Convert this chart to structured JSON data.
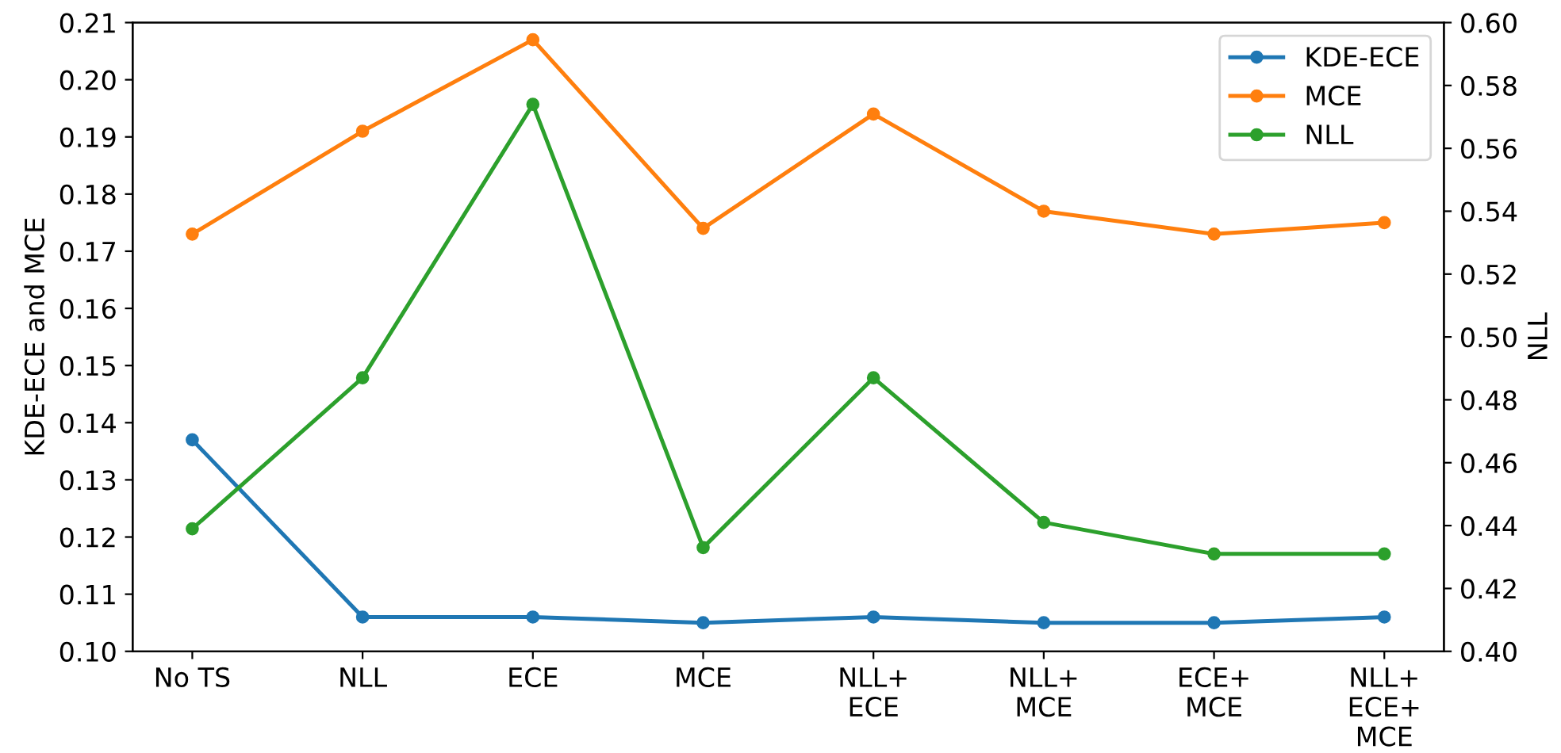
{
  "chart_data": {
    "type": "line",
    "categories": [
      "No TS",
      "NLL",
      "ECE",
      "MCE",
      "NLL+\nECE",
      "NLL+\nMCE",
      "ECE+\nMCE",
      "NLL+\nECE+\nMCE"
    ],
    "ylabel": "KDE-ECE and MCE",
    "y2label": "NLL",
    "ylim": [
      0.1,
      0.21
    ],
    "yticks": [
      {
        "value": 0.1,
        "label": "0.10"
      },
      {
        "value": 0.11,
        "label": "0.11"
      },
      {
        "value": 0.12,
        "label": "0.12"
      },
      {
        "value": 0.13,
        "label": "0.13"
      },
      {
        "value": 0.14,
        "label": "0.14"
      },
      {
        "value": 0.15,
        "label": "0.15"
      },
      {
        "value": 0.16,
        "label": "0.16"
      },
      {
        "value": 0.17,
        "label": "0.17"
      },
      {
        "value": 0.18,
        "label": "0.18"
      },
      {
        "value": 0.19,
        "label": "0.19"
      },
      {
        "value": 0.2,
        "label": "0.20"
      },
      {
        "value": 0.21,
        "label": "0.21"
      }
    ],
    "y2lim": [
      0.4,
      0.6
    ],
    "y2ticks": [
      {
        "value": 0.4,
        "label": "0.40"
      },
      {
        "value": 0.42,
        "label": "0.42"
      },
      {
        "value": 0.44,
        "label": "0.44"
      },
      {
        "value": 0.46,
        "label": "0.46"
      },
      {
        "value": 0.48,
        "label": "0.48"
      },
      {
        "value": 0.5,
        "label": "0.50"
      },
      {
        "value": 0.52,
        "label": "0.52"
      },
      {
        "value": 0.54,
        "label": "0.54"
      },
      {
        "value": 0.56,
        "label": "0.56"
      },
      {
        "value": 0.58,
        "label": "0.58"
      },
      {
        "value": 0.6,
        "label": "0.60"
      }
    ],
    "marker": "circle",
    "line_style": "solid",
    "grid": false,
    "legend": "top right",
    "series": [
      {
        "name": "KDE-ECE",
        "color": "#1f77b4",
        "values": [
          0.137,
          0.106,
          0.106,
          0.105,
          0.106,
          0.105,
          0.105,
          0.106
        ]
      },
      {
        "name": "MCE",
        "color": "#ff7f0e",
        "values": [
          0.173,
          0.191,
          0.207,
          0.174,
          0.194,
          0.177,
          0.173,
          0.175
        ]
      },
      {
        "name": "NLL",
        "color": "#2ca02c",
        "axis": "y2",
        "values": [
          0.439,
          0.487,
          0.574,
          0.433,
          0.487,
          0.441,
          0.431,
          0.431
        ]
      }
    ]
  }
}
